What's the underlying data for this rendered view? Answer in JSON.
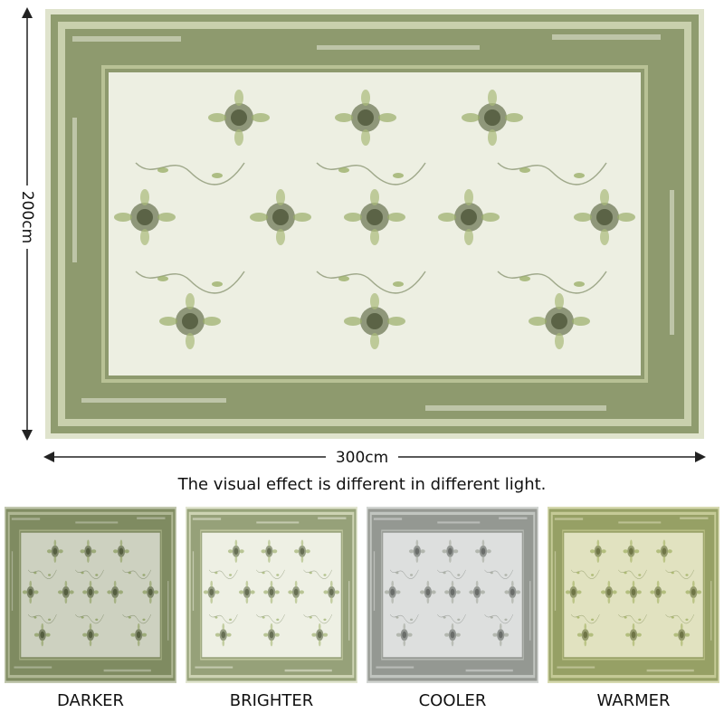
{
  "dimensions": {
    "height": "200cm",
    "width": "300cm"
  },
  "caption": "The visual effect is different in different light.",
  "variants": [
    {
      "label": "DARKER"
    },
    {
      "label": "BRIGHTER"
    },
    {
      "label": "COOLER"
    },
    {
      "label": "WARMER"
    }
  ]
}
